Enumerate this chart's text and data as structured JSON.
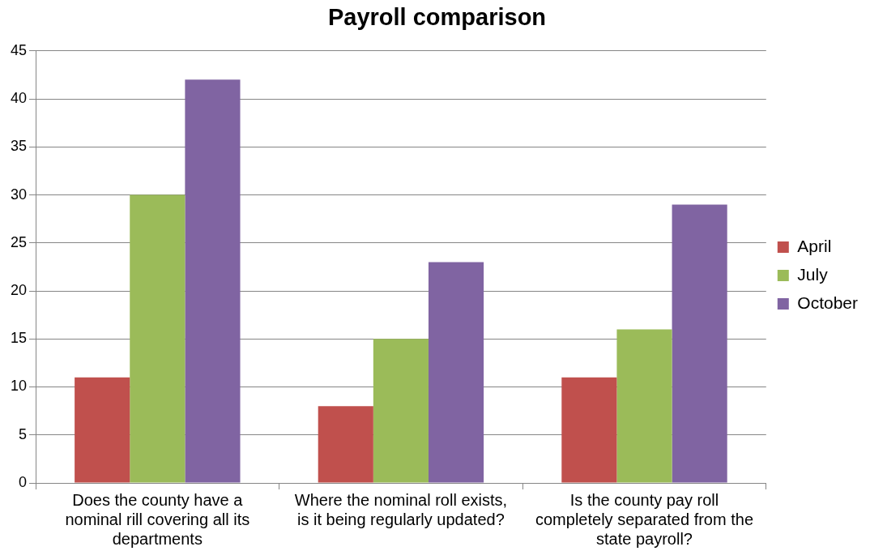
{
  "chart_data": {
    "type": "bar",
    "title": "Payroll comparison",
    "categories": [
      "Does the county have a nominal rill covering all its departments",
      "Where the nominal roll exists, is it being regularly updated?",
      "Is the county pay roll completely separated from the state payroll?"
    ],
    "series": [
      {
        "name": "April",
        "color": "#c0504d",
        "values": [
          11,
          8,
          11
        ]
      },
      {
        "name": "July",
        "color": "#9bbb59",
        "values": [
          30,
          15,
          16
        ]
      },
      {
        "name": "October",
        "color": "#8064a2",
        "values": [
          42,
          23,
          29
        ]
      }
    ],
    "ylim": [
      0,
      45
    ],
    "yticks": [
      0,
      5,
      10,
      15,
      20,
      25,
      30,
      35,
      40,
      45
    ],
    "grid": "y",
    "legend": "right"
  }
}
